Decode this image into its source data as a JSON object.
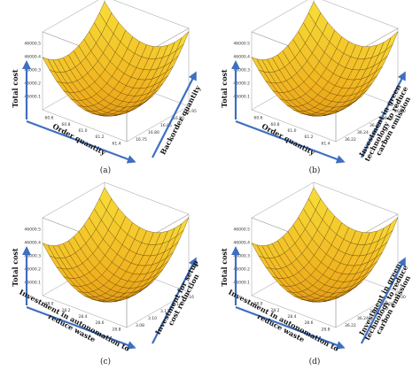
{
  "chart_data": [
    {
      "type": "surface",
      "panel_label": "(a)",
      "zlabel": "Total cost",
      "xlabel_lines": [
        "Order quantity"
      ],
      "ylabel_lines": [
        "Backorder quantity"
      ],
      "z_ticks": [
        "46000.5",
        "46000.4",
        "46000.3",
        "46000.2",
        "46000.1"
      ],
      "x_ticks": [
        "60.6",
        "60.8",
        "61.0",
        "61.2",
        "61.4"
      ],
      "y_ticks": [
        "16.75",
        "16.80",
        "16.85",
        "16.90",
        "16.95"
      ],
      "colors": {
        "light": "#f7de3a",
        "mid": "#f0b21e",
        "dark": "#c9780a",
        "arrow": "#3e6fc0"
      }
    },
    {
      "type": "surface",
      "panel_label": "(b)",
      "zlabel": "Total cost",
      "xlabel_lines": [
        "Order quantity"
      ],
      "ylabel_lines": [
        "Investment in green",
        "technology to reduce",
        "carbon emission"
      ],
      "z_ticks": [
        "46000.5",
        "46000.4",
        "46000.3",
        "46000.2",
        "46000.1"
      ],
      "x_ticks": [
        "60.6",
        "60.8",
        "61.0",
        "61.2",
        "61.4"
      ],
      "y_ticks": [
        "36.22",
        "36.24",
        "36.26",
        "36.28",
        "36.30"
      ],
      "colors": {
        "light": "#f7de3a",
        "mid": "#f0b21e",
        "dark": "#c9780a",
        "arrow": "#3e6fc0"
      }
    },
    {
      "type": "surface",
      "panel_label": "(c)",
      "zlabel": "Total cost",
      "xlabel_lines": [
        "Investment in autonomation to",
        "reduce waste"
      ],
      "ylabel_lines": [
        "Investment for setup",
        "cost reduction"
      ],
      "z_ticks": [
        "46000.5",
        "46000.4",
        "46000.3",
        "46000.2",
        "46000.1"
      ],
      "x_ticks": [
        "28.0",
        "28.2",
        "28.4",
        "28.6",
        "28.8"
      ],
      "y_ticks": [
        "3.08",
        "3.10",
        "3.12",
        "3.14",
        "3.16"
      ],
      "colors": {
        "light": "#f7de3a",
        "mid": "#f0b21e",
        "dark": "#c9780a",
        "arrow": "#3e6fc0"
      }
    },
    {
      "type": "surface",
      "panel_label": "(d)",
      "zlabel": "Total cost",
      "xlabel_lines": [
        "Investment in autonomation to",
        "reduce waste"
      ],
      "ylabel_lines": [
        "Investment in green",
        "technology to reduce",
        "carbon emission"
      ],
      "z_ticks": [
        "46000.5",
        "46000.4",
        "46000.3",
        "46000.2",
        "46000.1"
      ],
      "x_ticks": [
        "28.0",
        "28.2",
        "28.4",
        "28.6",
        "28.8"
      ],
      "y_ticks": [
        "36.22",
        "36.24",
        "36.26",
        "36.28",
        "36.30"
      ],
      "colors": {
        "light": "#f7de3a",
        "mid": "#f0b21e",
        "dark": "#c9780a",
        "arrow": "#3e6fc0"
      }
    }
  ]
}
